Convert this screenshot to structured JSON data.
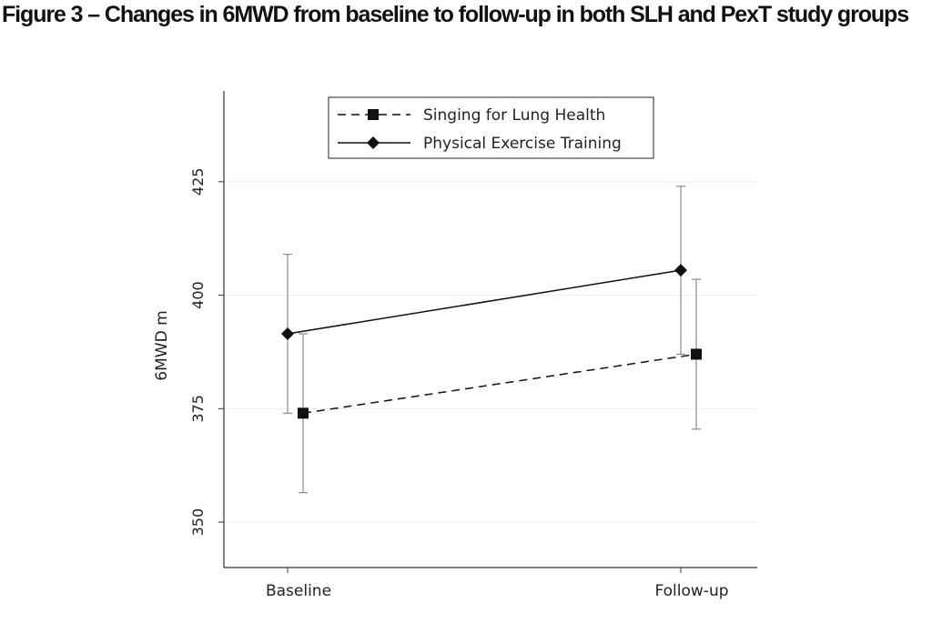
{
  "figure": {
    "title": "Figure 3 – Changes in 6MWD from baseline to follow-up in both SLH and PexT study groups"
  },
  "chart_data": {
    "type": "line",
    "title": "",
    "xlabel": "",
    "ylabel": "6MWD m",
    "categories": [
      "Baseline",
      "Follow-up"
    ],
    "ylim": [
      340,
      445
    ],
    "yticks": [
      350,
      375,
      400,
      425
    ],
    "grid": true,
    "legend_position": "top-center",
    "series": [
      {
        "name": "Singing for Lung Health",
        "style": "dashed",
        "marker": "square",
        "values": [
          374,
          387
        ],
        "ci_low": [
          356.5,
          370.5
        ],
        "ci_high": [
          391.5,
          403.5
        ]
      },
      {
        "name": "Physical Exercise Training",
        "style": "solid",
        "marker": "diamond",
        "values": [
          391.5,
          405.5
        ],
        "ci_low": [
          374,
          387
        ],
        "ci_high": [
          409,
          424
        ]
      }
    ],
    "colors": {
      "line": "#111111",
      "errorbar": "#8a8a8a",
      "grid": "#e6efef",
      "axis": "#333333"
    }
  }
}
